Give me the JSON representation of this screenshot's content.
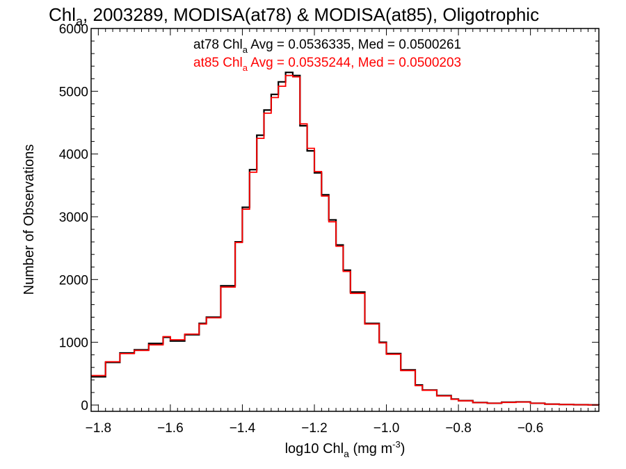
{
  "chart_data": {
    "type": "line",
    "title_parts": {
      "pre": "Chl",
      "sub": "a",
      "post": ", 2003289, MODISA(at78) & MODISA(at85), Oligotrophic"
    },
    "xlabel_parts": {
      "pre": "log10 Chl",
      "sub": "a",
      "mid": " (mg m",
      "sup": "-3",
      "post": ")"
    },
    "ylabel": "Number of Observations",
    "xlim": [
      -1.82,
      -0.41
    ],
    "ylim": [
      -100,
      6000
    ],
    "x_ticks": [
      -1.8,
      -1.6,
      -1.4,
      -1.2,
      -1.0,
      -0.8,
      -0.6
    ],
    "x_tick_labels": [
      "−1.8",
      "−1.6",
      "−1.4",
      "−1.2",
      "−1.0",
      "−0.8",
      "−0.6"
    ],
    "y_ticks": [
      0,
      1000,
      2000,
      3000,
      4000,
      5000,
      6000
    ],
    "y_tick_labels": [
      "0",
      "1000",
      "2000",
      "3000",
      "4000",
      "5000",
      "6000"
    ],
    "grid": false,
    "step": "histogram",
    "annotations": [
      {
        "pre": "at78 Chl",
        "sub": "a",
        "post": " Avg = 0.0536335, Med = 0.0500261",
        "color": "#000000"
      },
      {
        "pre": "at85 Chl",
        "sub": "a",
        "post": " Avg = 0.0535244, Med = 0.0500203",
        "color": "#ff0000"
      }
    ],
    "series": [
      {
        "color": "#000000",
        "x": [
          -1.82,
          -1.78,
          -1.74,
          -1.7,
          -1.66,
          -1.62,
          -1.6,
          -1.56,
          -1.52,
          -1.5,
          -1.46,
          -1.42,
          -1.4,
          -1.38,
          -1.36,
          -1.34,
          -1.32,
          -1.3,
          -1.28,
          -1.26,
          -1.24,
          -1.22,
          -1.2,
          -1.18,
          -1.16,
          -1.14,
          -1.12,
          -1.1,
          -1.06,
          -1.02,
          -1.0,
          -0.96,
          -0.92,
          -0.9,
          -0.86,
          -0.82,
          -0.8,
          -0.76,
          -0.72,
          -0.68,
          -0.64,
          -0.6,
          -0.56,
          -0.52,
          -0.48,
          -0.44,
          -0.41
        ],
        "y": [
          450,
          680,
          830,
          880,
          980,
          1080,
          1020,
          1120,
          1300,
          1400,
          1900,
          2600,
          3150,
          3750,
          4300,
          4700,
          4950,
          5150,
          5300,
          5250,
          4450,
          4050,
          3700,
          3350,
          2950,
          2550,
          2150,
          1800,
          1300,
          1000,
          820,
          560,
          320,
          240,
          150,
          95,
          70,
          40,
          30,
          45,
          50,
          30,
          15,
          10,
          5,
          3,
          0
        ]
      },
      {
        "color": "#ff0000",
        "x": [
          -1.82,
          -1.78,
          -1.74,
          -1.7,
          -1.66,
          -1.62,
          -1.6,
          -1.56,
          -1.52,
          -1.5,
          -1.46,
          -1.42,
          -1.4,
          -1.38,
          -1.36,
          -1.34,
          -1.32,
          -1.3,
          -1.28,
          -1.26,
          -1.24,
          -1.22,
          -1.2,
          -1.18,
          -1.16,
          -1.14,
          -1.12,
          -1.1,
          -1.06,
          -1.02,
          -1.0,
          -0.96,
          -0.92,
          -0.9,
          -0.86,
          -0.82,
          -0.8,
          -0.76,
          -0.72,
          -0.68,
          -0.64,
          -0.6,
          -0.56,
          -0.52,
          -0.48,
          -0.44,
          -0.41
        ],
        "y": [
          470,
          690,
          820,
          870,
          960,
          1090,
          1040,
          1130,
          1290,
          1390,
          1880,
          2590,
          3120,
          3710,
          4250,
          4650,
          4900,
          5080,
          5250,
          5230,
          4480,
          4090,
          3720,
          3330,
          2920,
          2530,
          2130,
          1780,
          1290,
          990,
          810,
          550,
          310,
          235,
          145,
          92,
          68,
          38,
          28,
          42,
          48,
          28,
          14,
          9,
          5,
          2,
          0
        ]
      }
    ]
  }
}
